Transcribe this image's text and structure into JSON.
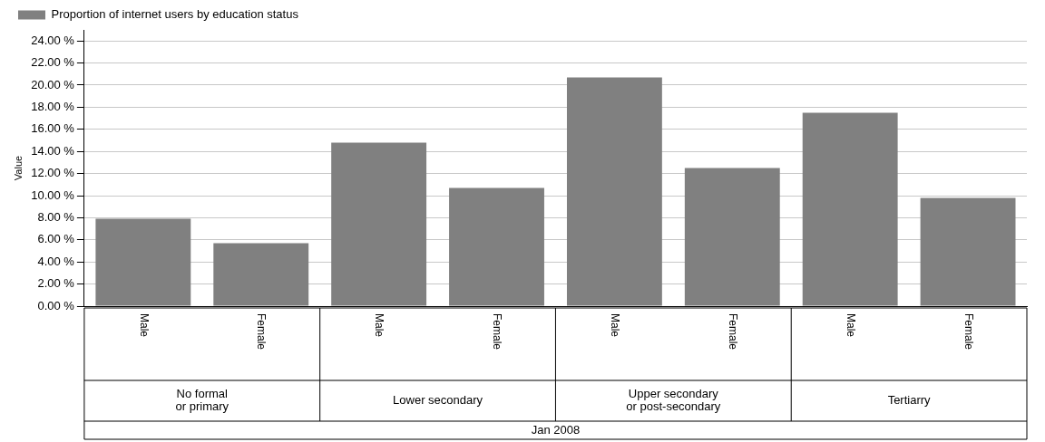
{
  "chart_data": {
    "type": "bar",
    "ylabel": "Value",
    "categories": [
      "Male",
      "Female",
      "Male",
      "Female",
      "Male",
      "Female",
      "Male",
      "Female"
    ],
    "series": [
      {
        "name": "Proportion of internet users by education status",
        "color": "#808080",
        "values": [
          7.9,
          5.7,
          14.8,
          10.7,
          20.7,
          12.5,
          17.5,
          9.8
        ]
      }
    ],
    "ylim": [
      0,
      25
    ],
    "yticks": [
      {
        "value": 0,
        "label": "0.00 %"
      },
      {
        "value": 2,
        "label": "2.00 %"
      },
      {
        "value": 4,
        "label": "4.00 %"
      },
      {
        "value": 6,
        "label": "6.00 %"
      },
      {
        "value": 8,
        "label": "8.00 %"
      },
      {
        "value": 10,
        "label": "10.00 %"
      },
      {
        "value": 12,
        "label": "12.00 %"
      },
      {
        "value": 14,
        "label": "14.00 %"
      },
      {
        "value": 16,
        "label": "16.00 %"
      },
      {
        "value": 18,
        "label": "18.00 %"
      },
      {
        "value": 20,
        "label": "20.00 %"
      },
      {
        "value": 22,
        "label": "22.00 %"
      },
      {
        "value": 24,
        "label": "24.00 %"
      }
    ],
    "annotations": [
      "No formal\nor primary",
      "Lower secondary",
      "Upper secondary\nor post-secondary",
      "Tertiarry",
      "Jan 2008"
    ],
    "grid": "y",
    "legend": "top left"
  }
}
